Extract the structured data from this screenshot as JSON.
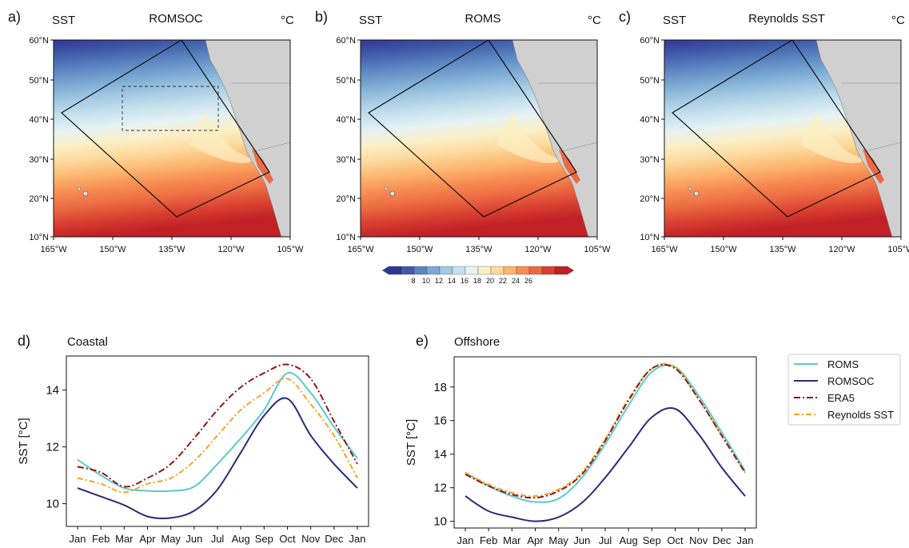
{
  "colors": {
    "roms": "#5bc8d2",
    "romsoc": "#2b2a7a",
    "era5": "#8b1a1a",
    "reynolds": "#f5a623",
    "land": "#d0d0d0",
    "sst_ramp": [
      "#313695",
      "#3f5ca8",
      "#5b85c0",
      "#7ba9d3",
      "#a2c9e2",
      "#c6e1ee",
      "#e6f2f3",
      "#fbefc5",
      "#fdd99b",
      "#fcb671",
      "#f88d52",
      "#ec6a43",
      "#d93f30",
      "#c02026"
    ]
  },
  "maps": [
    {
      "letter": "a)",
      "var": "SST",
      "title": "ROMSOC",
      "unit": "°C",
      "box": true
    },
    {
      "letter": "b)",
      "var": "SST",
      "title": "ROMS",
      "unit": "°C",
      "box": false
    },
    {
      "letter": "c)",
      "var": "SST",
      "title": "Reynolds SST",
      "unit": "°C",
      "box": false
    }
  ],
  "map_axes": {
    "lat_ticks": [
      "60°N",
      "50°N",
      "40°N",
      "30°N",
      "20°N",
      "10°N"
    ],
    "lon_ticks": [
      "165°W",
      "150°W",
      "135°W",
      "120°W",
      "105°W"
    ]
  },
  "colorbar": {
    "labels": [
      "8",
      "10",
      "12",
      "14",
      "16",
      "18",
      "20",
      "22",
      "24",
      "26"
    ]
  },
  "chart_data": [
    {
      "type": "line",
      "letter": "d)",
      "title": "Coastal",
      "ylabel": "SST [°C]",
      "x": [
        "Jan",
        "Feb",
        "Mar",
        "Apr",
        "May",
        "Jun",
        "Jul",
        "Aug",
        "Sep",
        "Oct",
        "Nov",
        "Dec",
        "Jan"
      ],
      "yticks": [
        10,
        12,
        14
      ],
      "ylim": [
        9.2,
        15.2
      ],
      "series": [
        {
          "name": "ROMS",
          "values": [
            11.55,
            11.0,
            10.55,
            10.45,
            10.45,
            10.6,
            11.4,
            12.3,
            13.3,
            14.6,
            13.9,
            12.7,
            11.6
          ]
        },
        {
          "name": "ROMSOC",
          "values": [
            10.55,
            10.25,
            9.95,
            9.55,
            9.5,
            9.75,
            10.5,
            11.8,
            13.1,
            13.7,
            12.4,
            11.4,
            10.55
          ]
        },
        {
          "name": "ERA5",
          "values": [
            11.3,
            11.1,
            10.6,
            10.9,
            11.4,
            12.3,
            13.3,
            14.1,
            14.6,
            14.9,
            14.4,
            12.9,
            11.4
          ]
        },
        {
          "name": "Reynolds SST",
          "values": [
            10.9,
            10.7,
            10.4,
            10.7,
            10.9,
            11.5,
            12.4,
            13.3,
            13.9,
            14.4,
            13.5,
            12.4,
            10.9
          ]
        }
      ]
    },
    {
      "type": "line",
      "letter": "e)",
      "title": "Offshore",
      "ylabel": "SST [°C]",
      "x": [
        "Jan",
        "Feb",
        "Mar",
        "Apr",
        "May",
        "Jun",
        "Jul",
        "Aug",
        "Sep",
        "Oct",
        "Nov",
        "Dec",
        "Jan"
      ],
      "yticks": [
        10,
        12,
        14,
        16,
        18
      ],
      "ylim": [
        9.6,
        19.8
      ],
      "series": [
        {
          "name": "ROMS",
          "values": [
            12.9,
            12.1,
            11.5,
            11.15,
            11.35,
            12.6,
            14.6,
            16.9,
            18.9,
            19.2,
            17.5,
            15.3,
            13.0
          ]
        },
        {
          "name": "ROMSOC",
          "values": [
            11.5,
            10.6,
            10.25,
            10.0,
            10.25,
            11.1,
            12.6,
            14.4,
            16.2,
            16.7,
            15.2,
            13.2,
            11.5
          ]
        },
        {
          "name": "ERA5",
          "values": [
            12.8,
            12.1,
            11.6,
            11.4,
            11.8,
            12.8,
            14.8,
            17.2,
            19.1,
            19.1,
            17.3,
            15.1,
            12.9
          ]
        },
        {
          "name": "Reynolds SST",
          "values": [
            12.9,
            12.2,
            11.7,
            11.5,
            11.9,
            12.9,
            14.9,
            17.3,
            19.1,
            19.2,
            17.3,
            15.1,
            12.9
          ]
        }
      ]
    }
  ],
  "legend": [
    "ROMS",
    "ROMSOC",
    "ERA5",
    "Reynolds SST"
  ]
}
